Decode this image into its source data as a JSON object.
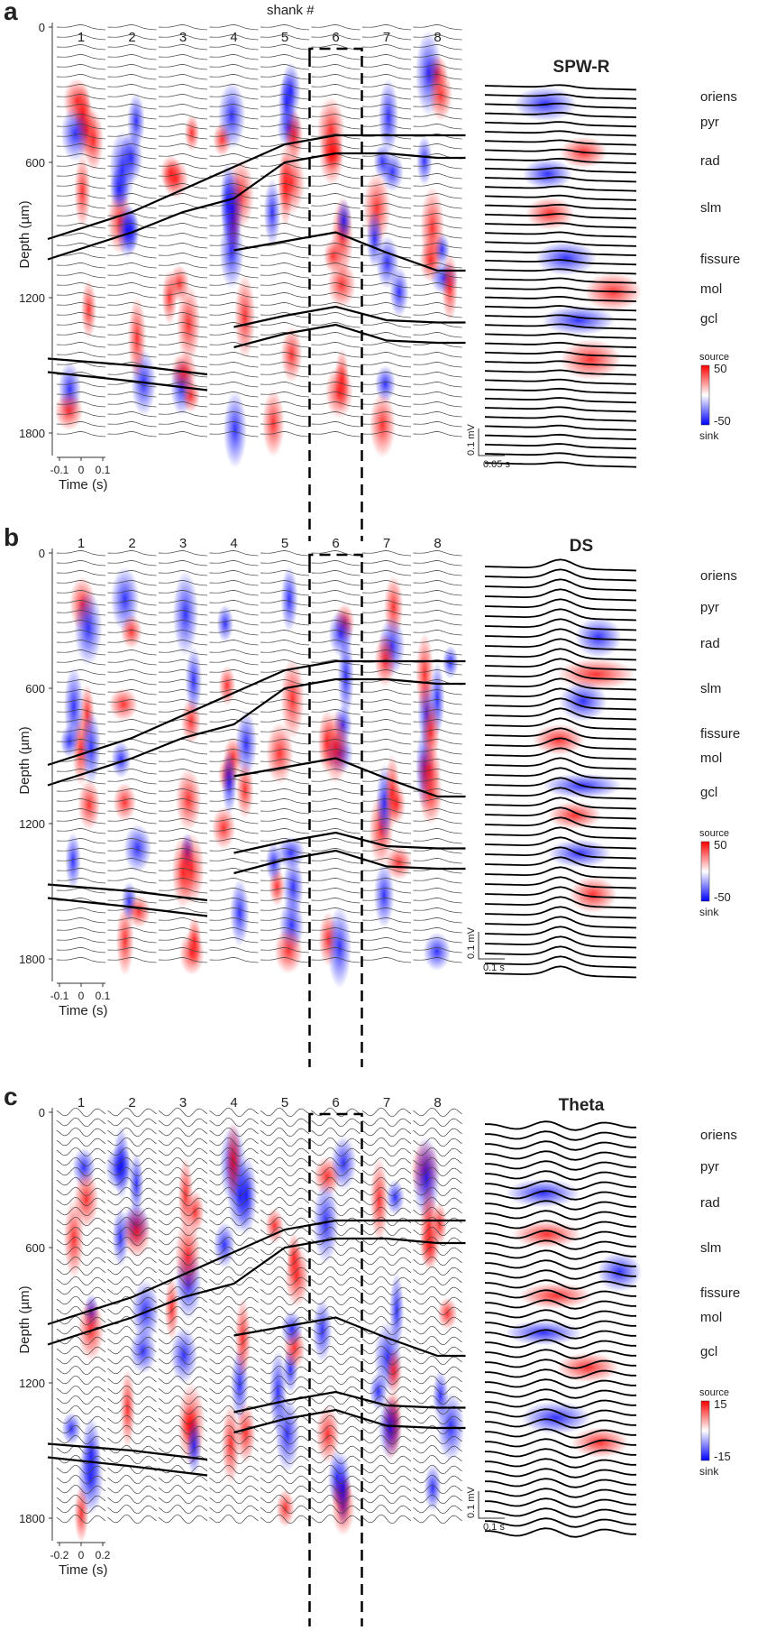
{
  "chart_data": [
    {
      "type": "heatmap",
      "panel_label": "a",
      "title": "SPW-R",
      "header": "shank #",
      "shanks": [
        "1",
        "2",
        "3",
        "4",
        "5",
        "6",
        "7",
        "8"
      ],
      "highlighted_shank": "6",
      "ylabel": "Depth (µm)",
      "yticks": [
        "0",
        "600",
        "1200",
        "1800"
      ],
      "ylim": [
        0,
        1900
      ],
      "xlabel": "Time (s)",
      "xticks": [
        "-0.1",
        "0",
        "0.1"
      ],
      "layers": [
        "oriens",
        "pyr",
        "rad",
        "slm",
        "fissure",
        "mol",
        "gcl"
      ],
      "colorbar": {
        "top_label": "source",
        "bottom_label": "sink",
        "max": "50",
        "min": "-50",
        "max_color": "#ff0000",
        "min_color": "#0000ff"
      },
      "scalebar": {
        "voltage": "0.1 mV",
        "time": "0.05 s"
      },
      "boundaries_depth_um": [
        [
          940,
          820,
          720,
          620,
          520,
          480,
          480,
          480
        ],
        [
          1030,
          910,
          820,
          760,
          600,
          560,
          560,
          580
        ],
        [
          null,
          null,
          null,
          990,
          950,
          910,
          1000,
          1080
        ],
        [
          null,
          null,
          null,
          1330,
          1280,
          1240,
          1300,
          1310
        ],
        [
          null,
          null,
          null,
          1420,
          1360,
          1320,
          1390,
          1400
        ]
      ],
      "boundaries_shank123_depth_um": [
        [
          1470,
          1500,
          1540
        ],
        [
          1530,
          1570,
          1610
        ]
      ]
    },
    {
      "type": "heatmap",
      "panel_label": "b",
      "title": "DS",
      "shanks": [
        "1",
        "2",
        "3",
        "4",
        "5",
        "6",
        "7",
        "8"
      ],
      "highlighted_shank": "6",
      "ylabel": "Depth (µm)",
      "yticks": [
        "0",
        "600",
        "1200",
        "1800"
      ],
      "ylim": [
        0,
        1900
      ],
      "xlabel": "Time (s)",
      "xticks": [
        "-0.1",
        "0",
        "0.1"
      ],
      "layers": [
        "oriens",
        "pyr",
        "rad",
        "slm",
        "fissure",
        "mol",
        "gcl"
      ],
      "colorbar": {
        "top_label": "source",
        "bottom_label": "sink",
        "max": "50",
        "min": "-50",
        "max_color": "#ff0000",
        "min_color": "#0000ff"
      },
      "scalebar": {
        "voltage": "0.1 mV",
        "time": "0.1 s"
      }
    },
    {
      "type": "heatmap",
      "panel_label": "c",
      "title": "Theta",
      "shanks": [
        "1",
        "2",
        "3",
        "4",
        "5",
        "6",
        "7",
        "8"
      ],
      "highlighted_shank": "6",
      "ylabel": "Depth (µm)",
      "yticks": [
        "0",
        "600",
        "1200",
        "1800"
      ],
      "ylim": [
        0,
        1900
      ],
      "xlabel": "Time (s)",
      "xticks": [
        "-0.2",
        "0",
        "0.2"
      ],
      "layers": [
        "oriens",
        "pyr",
        "rad",
        "slm",
        "fissure",
        "mol",
        "gcl"
      ],
      "colorbar": {
        "top_label": "source",
        "bottom_label": "sink",
        "max": "15",
        "min": "-15",
        "max_color": "#ff0000",
        "min_color": "#0000ff"
      },
      "scalebar": {
        "voltage": "0.1 mV",
        "time": "0.1 s"
      }
    }
  ]
}
